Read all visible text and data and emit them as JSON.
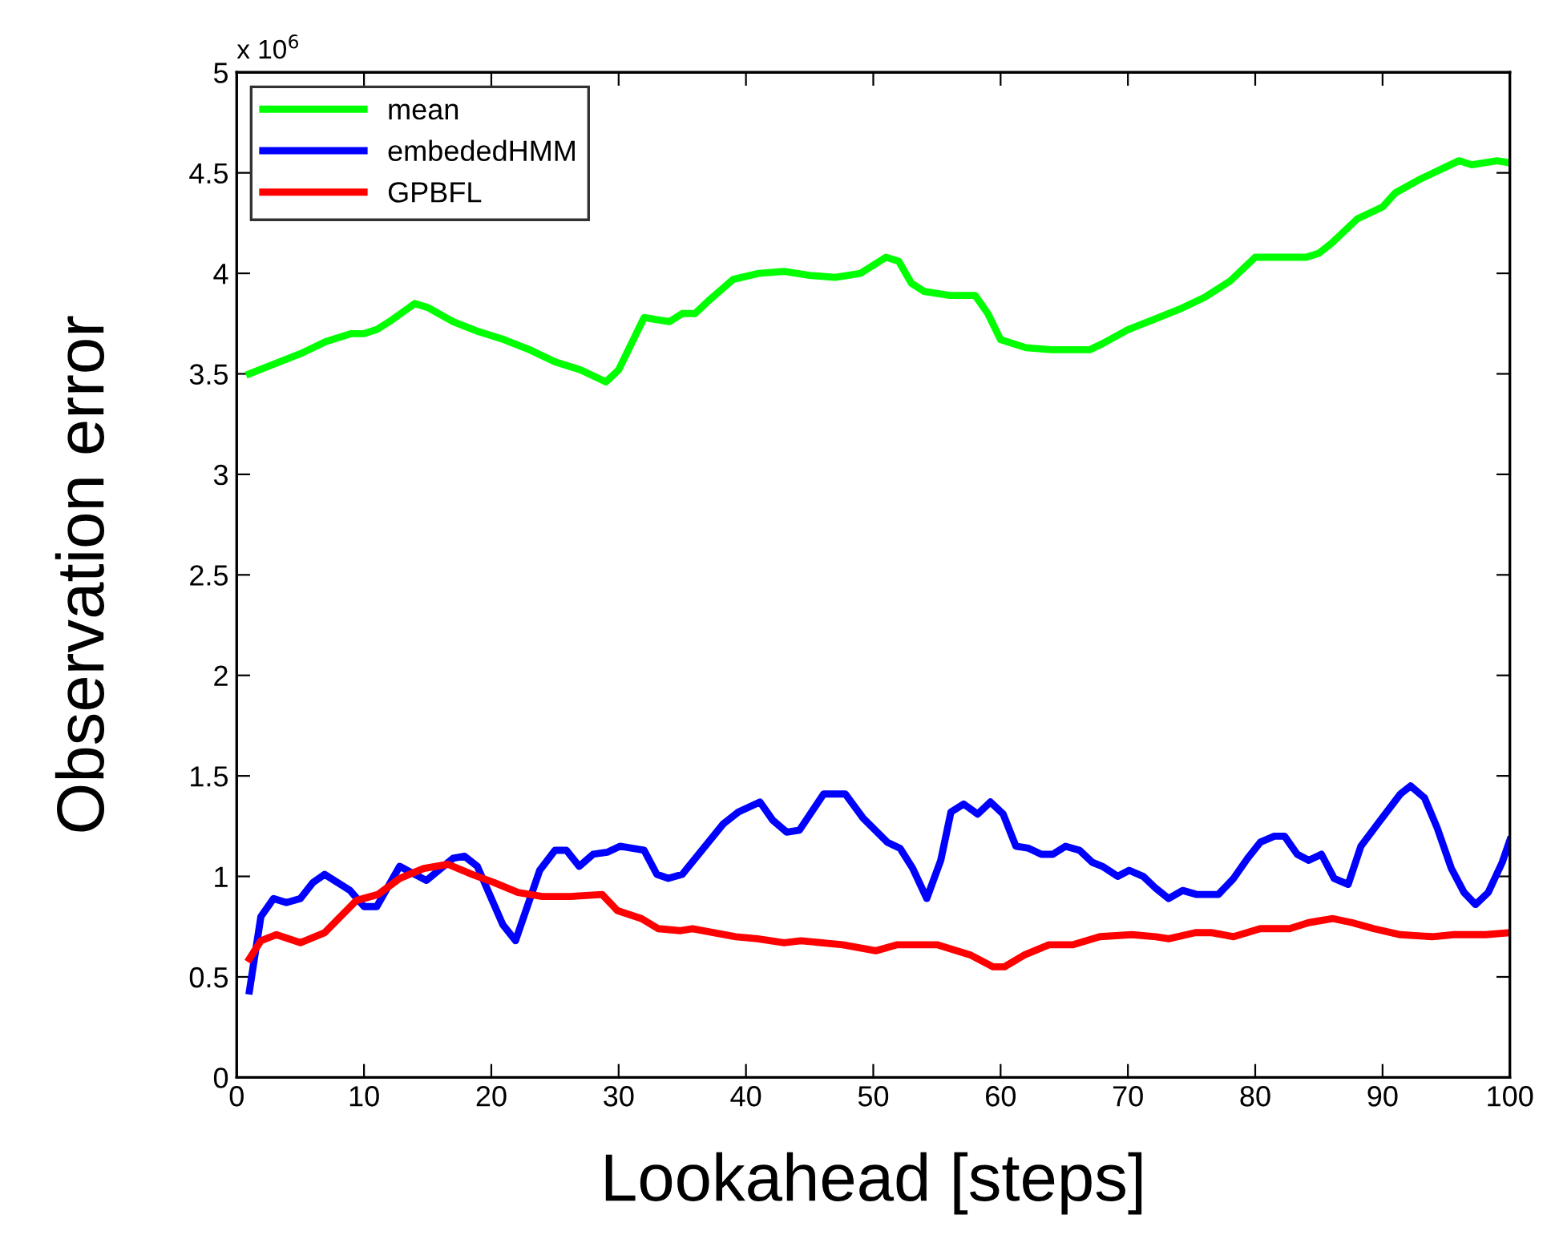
{
  "chart_data": {
    "type": "line",
    "xlabel": "Lookahead [steps]",
    "ylabel": "Observation error",
    "annotations": [
      "x 10$^{6}$"
    ],
    "xlim": [
      0,
      100
    ],
    "xticks": [
      0,
      10,
      20,
      30,
      40,
      50,
      60,
      70,
      80,
      90,
      100
    ],
    "ylim": [
      0,
      5
    ],
    "yticks": [
      0,
      0.5,
      1,
      1.5,
      2,
      2.5,
      3,
      3.5,
      4,
      4.5,
      5
    ],
    "grid": false,
    "legend": "top left",
    "marker": "none",
    "line_style": "solid",
    "series": [
      {
        "name": "mean",
        "color": "#00ff00",
        "x": [
          1,
          3,
          5,
          7,
          9,
          10,
          11,
          12,
          14,
          15,
          17,
          19,
          21,
          23,
          25,
          27,
          29,
          30,
          32,
          33,
          34,
          35,
          36,
          37,
          39,
          41,
          43,
          45,
          47,
          49,
          51,
          52,
          53,
          54,
          56,
          58,
          59,
          60,
          62,
          64,
          67,
          68,
          70,
          72,
          74,
          76,
          78,
          80,
          82,
          84,
          85,
          86,
          88,
          90,
          91,
          93,
          95,
          96,
          97,
          98,
          99,
          100
        ],
        "values": [
          3.5,
          3.55,
          3.6,
          3.66,
          3.7,
          3.7,
          3.72,
          3.76,
          3.85,
          3.83,
          3.76,
          3.71,
          3.67,
          3.62,
          3.56,
          3.52,
          3.46,
          3.52,
          3.78,
          3.77,
          3.76,
          3.8,
          3.8,
          3.86,
          3.97,
          4.0,
          4.01,
          3.99,
          3.98,
          4.0,
          4.08,
          4.06,
          3.95,
          3.91,
          3.89,
          3.89,
          3.8,
          3.67,
          3.63,
          3.62,
          3.62,
          3.65,
          3.72,
          3.77,
          3.82,
          3.88,
          3.96,
          4.08,
          4.08,
          4.08,
          4.1,
          4.15,
          4.27,
          4.33,
          4.4,
          4.47,
          4.53,
          4.56,
          4.54,
          4.55,
          4.56,
          4.55
        ]
      },
      {
        "name": "embededHMM",
        "color": "#0000ff",
        "x": [
          1,
          1.9,
          2.9,
          3.9,
          5,
          6,
          6.9,
          8.9,
          10,
          11,
          12.8,
          14.9,
          17,
          17.9,
          18.9,
          20.9,
          21.9,
          23.8,
          25,
          25.9,
          26.9,
          28,
          29.1,
          30.1,
          32,
          33,
          33.9,
          35,
          38.2,
          39.4,
          41.1,
          42.1,
          43.2,
          44.2,
          46.1,
          47.8,
          49.2,
          51.1,
          52.1,
          53.1,
          54.2,
          55.3,
          56.1,
          57.1,
          58.2,
          59.2,
          60.2,
          61.2,
          62.2,
          63.2,
          64.1,
          65.1,
          66.2,
          67.2,
          68,
          69.2,
          70.1,
          71.2,
          72.2,
          73.2,
          74.3,
          75.4,
          77.1,
          78.3,
          79.4,
          80.4,
          81.5,
          82.3,
          83.3,
          84.2,
          85.2,
          86.2,
          87.3,
          88.3,
          89.6,
          91.4,
          92.2,
          93.3,
          94.3,
          95.4,
          96.4,
          97.3,
          98.3,
          99.4,
          100
        ],
        "values": [
          0.43,
          0.8,
          0.89,
          0.87,
          0.89,
          0.97,
          1.01,
          0.93,
          0.85,
          0.85,
          1.05,
          0.98,
          1.09,
          1.1,
          1.05,
          0.76,
          0.68,
          1.03,
          1.13,
          1.13,
          1.05,
          1.11,
          1.12,
          1.15,
          1.13,
          1.01,
          0.99,
          1.01,
          1.26,
          1.32,
          1.37,
          1.28,
          1.22,
          1.23,
          1.41,
          1.41,
          1.29,
          1.17,
          1.14,
          1.04,
          0.89,
          1.08,
          1.32,
          1.36,
          1.31,
          1.37,
          1.31,
          1.15,
          1.14,
          1.11,
          1.11,
          1.15,
          1.13,
          1.07,
          1.05,
          1.0,
          1.03,
          1.0,
          0.94,
          0.89,
          0.93,
          0.91,
          0.91,
          0.99,
          1.09,
          1.17,
          1.2,
          1.2,
          1.11,
          1.08,
          1.11,
          0.99,
          0.96,
          1.15,
          1.26,
          1.41,
          1.45,
          1.39,
          1.24,
          1.04,
          0.92,
          0.86,
          0.92,
          1.07,
          1.18
        ]
      },
      {
        "name": "GPBFL",
        "color": "#ff0000",
        "x": [
          1,
          1.9,
          3.1,
          5,
          6.9,
          9.4,
          11.1,
          12.8,
          14.7,
          16.6,
          18.5,
          20.2,
          22.1,
          24,
          26.2,
          28.7,
          29.9,
          31.8,
          33.1,
          34.8,
          35.8,
          39.2,
          40.9,
          43,
          44.3,
          47.6,
          50.2,
          51.9,
          55,
          57.6,
          59.4,
          60.3,
          61.9,
          63.8,
          65.7,
          67.8,
          70.3,
          72.2,
          73.2,
          75.3,
          76.6,
          78.3,
          80.4,
          82.7,
          84.2,
          86.1,
          87.6,
          89.3,
          91.4,
          93.9,
          95.6,
          98.1,
          100
        ],
        "values": [
          0.59,
          0.68,
          0.71,
          0.67,
          0.72,
          0.88,
          0.91,
          0.99,
          1.04,
          1.06,
          1.01,
          0.97,
          0.92,
          0.9,
          0.9,
          0.91,
          0.83,
          0.79,
          0.74,
          0.73,
          0.74,
          0.7,
          0.69,
          0.67,
          0.68,
          0.66,
          0.63,
          0.66,
          0.66,
          0.61,
          0.55,
          0.55,
          0.61,
          0.66,
          0.66,
          0.7,
          0.71,
          0.7,
          0.69,
          0.72,
          0.72,
          0.7,
          0.74,
          0.74,
          0.77,
          0.79,
          0.77,
          0.74,
          0.71,
          0.7,
          0.71,
          0.71,
          0.72
        ]
      }
    ]
  }
}
